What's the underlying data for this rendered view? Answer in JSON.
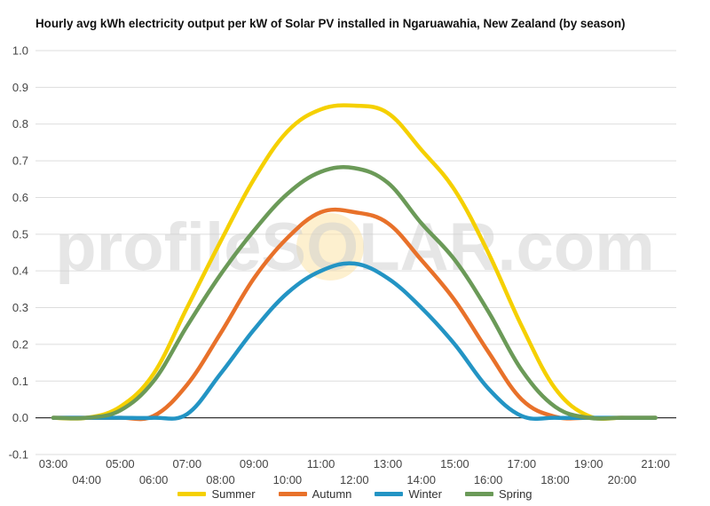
{
  "chart_data": {
    "type": "line",
    "title": "Hourly avg kWh electricity output per kW of Solar PV installed in Ngaruawahia, New Zealand (by season)",
    "watermark": "profileSOLAR.com",
    "xlabel": "",
    "ylabel": "",
    "x": [
      "03:00",
      "04:00",
      "05:00",
      "06:00",
      "07:00",
      "08:00",
      "09:00",
      "10:00",
      "11:00",
      "12:00",
      "13:00",
      "14:00",
      "15:00",
      "16:00",
      "17:00",
      "18:00",
      "19:00",
      "20:00",
      "21:00"
    ],
    "ylim": [
      -0.1,
      1.0
    ],
    "yticks": [
      "1.0",
      "0.9",
      "0.8",
      "0.7",
      "0.6",
      "0.5",
      "0.4",
      "0.3",
      "0.2",
      "0.1",
      "0.0",
      "-0.1"
    ],
    "grid": true,
    "legend_position": "bottom",
    "series": [
      {
        "name": "Summer",
        "color": "#f5d000",
        "values": [
          0.0,
          0.0,
          0.03,
          0.12,
          0.3,
          0.48,
          0.65,
          0.78,
          0.84,
          0.85,
          0.83,
          0.73,
          0.62,
          0.45,
          0.25,
          0.08,
          0.005,
          0.0,
          0.0
        ]
      },
      {
        "name": "Autumn",
        "color": "#e8712a",
        "values": [
          0.0,
          0.0,
          0.0,
          0.005,
          0.09,
          0.23,
          0.38,
          0.49,
          0.56,
          0.56,
          0.53,
          0.43,
          0.32,
          0.18,
          0.05,
          0.003,
          0.0,
          0.0,
          0.0
        ]
      },
      {
        "name": "Winter",
        "color": "#2394c4",
        "values": [
          0.0,
          0.0,
          0.0,
          0.0,
          0.01,
          0.12,
          0.24,
          0.34,
          0.4,
          0.42,
          0.38,
          0.3,
          0.2,
          0.08,
          0.005,
          0.0,
          0.0,
          0.0,
          0.0
        ]
      },
      {
        "name": "Spring",
        "color": "#6b9a58",
        "values": [
          0.0,
          0.0,
          0.02,
          0.1,
          0.25,
          0.39,
          0.51,
          0.61,
          0.67,
          0.68,
          0.64,
          0.53,
          0.43,
          0.29,
          0.13,
          0.03,
          0.0,
          0.0,
          0.0
        ]
      }
    ]
  }
}
